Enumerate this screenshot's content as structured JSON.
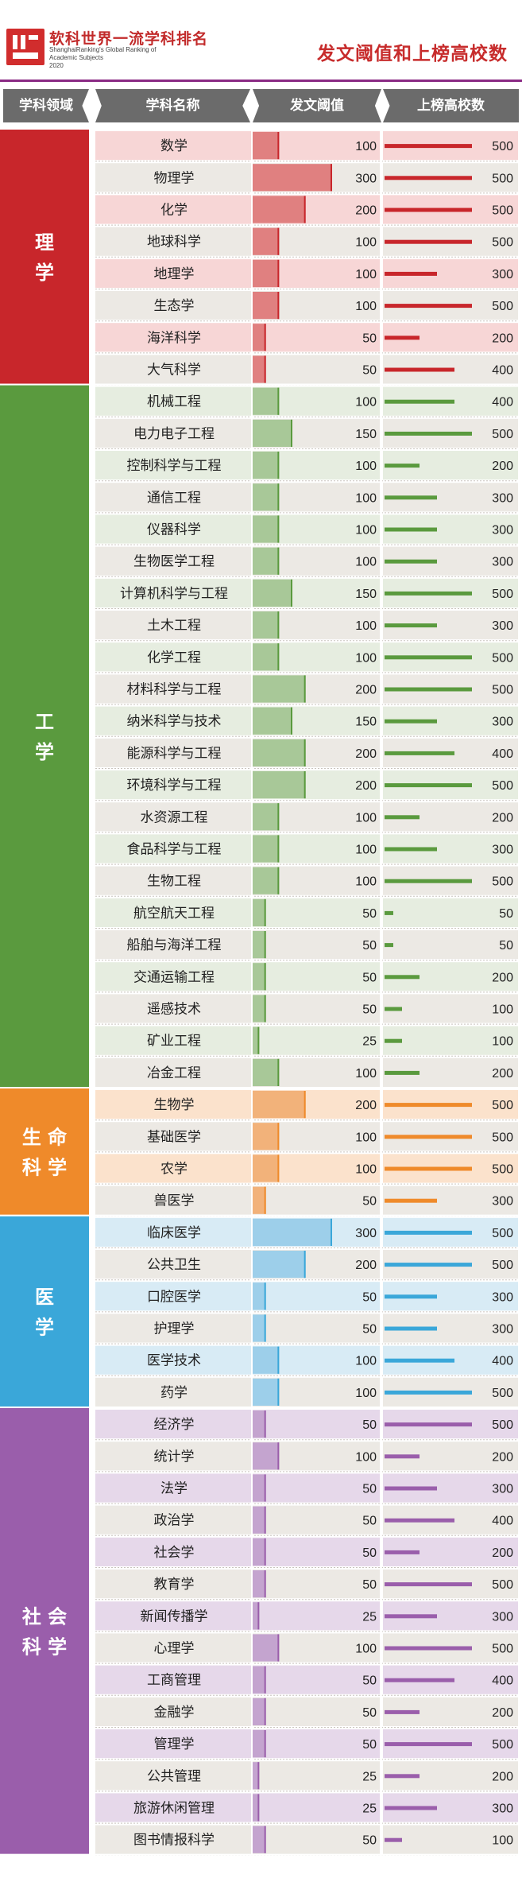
{
  "header": {
    "logo_cn": "软科世界一流学科排名",
    "logo_en1": "ShanghaiRanking's Global Ranking of",
    "logo_en2": "Academic Subjects",
    "logo_year": "2020",
    "title": "发文阈值和上榜高校数"
  },
  "columns": {
    "field": "学科领域",
    "subject": "学科名称",
    "threshold": "发文阈值",
    "schools": "上榜高校数"
  },
  "colors": {
    "理学": {
      "strong": "#c8262b",
      "bar": "#e08080",
      "line": "#c8262b",
      "row1": "#f7d6d6",
      "row2": "#ece9e4"
    },
    "工学": {
      "strong": "#5a9a3e",
      "bar": "#a8c898",
      "line": "#5a9a3e",
      "row1": "#e6ede0",
      "row2": "#ece9e4"
    },
    "生命科学": {
      "strong": "#ef8a2a",
      "bar": "#f2b27a",
      "line": "#ef8a2a",
      "row1": "#fbe2cc",
      "row2": "#ece9e4"
    },
    "医学": {
      "strong": "#3aa7d9",
      "bar": "#9dcfea",
      "line": "#3aa7d9",
      "row1": "#d8ebf5",
      "row2": "#ece9e4"
    },
    "社会科学": {
      "strong": "#9a5eab",
      "bar": "#c4a4cf",
      "line": "#9a5eab",
      "row1": "#e6d8ea",
      "row2": "#ece9e4"
    }
  },
  "chart_data": {
    "type": "table",
    "columns": [
      "学科领域",
      "学科名称",
      "发文阈值",
      "上榜高校数"
    ],
    "groups": [
      {
        "field": "理学",
        "subjects": [
          {
            "name": "数学",
            "threshold": 100,
            "schools": 500
          },
          {
            "name": "物理学",
            "threshold": 300,
            "schools": 500
          },
          {
            "name": "化学",
            "threshold": 200,
            "schools": 500
          },
          {
            "name": "地球科学",
            "threshold": 100,
            "schools": 500
          },
          {
            "name": "地理学",
            "threshold": 100,
            "schools": 300
          },
          {
            "name": "生态学",
            "threshold": 100,
            "schools": 500
          },
          {
            "name": "海洋科学",
            "threshold": 50,
            "schools": 200
          },
          {
            "name": "大气科学",
            "threshold": 50,
            "schools": 400
          }
        ]
      },
      {
        "field": "工学",
        "subjects": [
          {
            "name": "机械工程",
            "threshold": 100,
            "schools": 400
          },
          {
            "name": "电力电子工程",
            "threshold": 150,
            "schools": 500
          },
          {
            "name": "控制科学与工程",
            "threshold": 100,
            "schools": 200
          },
          {
            "name": "通信工程",
            "threshold": 100,
            "schools": 300
          },
          {
            "name": "仪器科学",
            "threshold": 100,
            "schools": 300
          },
          {
            "name": "生物医学工程",
            "threshold": 100,
            "schools": 300
          },
          {
            "name": "计算机科学与工程",
            "threshold": 150,
            "schools": 500
          },
          {
            "name": "土木工程",
            "threshold": 100,
            "schools": 300
          },
          {
            "name": "化学工程",
            "threshold": 100,
            "schools": 500
          },
          {
            "name": "材料科学与工程",
            "threshold": 200,
            "schools": 500
          },
          {
            "name": "纳米科学与技术",
            "threshold": 150,
            "schools": 300
          },
          {
            "name": "能源科学与工程",
            "threshold": 200,
            "schools": 400
          },
          {
            "name": "环境科学与工程",
            "threshold": 200,
            "schools": 500
          },
          {
            "name": "水资源工程",
            "threshold": 100,
            "schools": 200
          },
          {
            "name": "食品科学与工程",
            "threshold": 100,
            "schools": 300
          },
          {
            "name": "生物工程",
            "threshold": 100,
            "schools": 500
          },
          {
            "name": "航空航天工程",
            "threshold": 50,
            "schools": 50
          },
          {
            "name": "船舶与海洋工程",
            "threshold": 50,
            "schools": 50
          },
          {
            "name": "交通运输工程",
            "threshold": 50,
            "schools": 200
          },
          {
            "name": "遥感技术",
            "threshold": 50,
            "schools": 100
          },
          {
            "name": "矿业工程",
            "threshold": 25,
            "schools": 100
          },
          {
            "name": "冶金工程",
            "threshold": 100,
            "schools": 200
          }
        ]
      },
      {
        "field": "生命科学",
        "subjects": [
          {
            "name": "生物学",
            "threshold": 200,
            "schools": 500
          },
          {
            "name": "基础医学",
            "threshold": 100,
            "schools": 500
          },
          {
            "name": "农学",
            "threshold": 100,
            "schools": 500
          },
          {
            "name": "兽医学",
            "threshold": 50,
            "schools": 300
          }
        ]
      },
      {
        "field": "医学",
        "subjects": [
          {
            "name": "临床医学",
            "threshold": 300,
            "schools": 500
          },
          {
            "name": "公共卫生",
            "threshold": 200,
            "schools": 500
          },
          {
            "name": "口腔医学",
            "threshold": 50,
            "schools": 300
          },
          {
            "name": "护理学",
            "threshold": 50,
            "schools": 300
          },
          {
            "name": "医学技术",
            "threshold": 100,
            "schools": 400
          },
          {
            "name": "药学",
            "threshold": 100,
            "schools": 500
          }
        ]
      },
      {
        "field": "社会科学",
        "subjects": [
          {
            "name": "经济学",
            "threshold": 50,
            "schools": 500
          },
          {
            "name": "统计学",
            "threshold": 100,
            "schools": 200
          },
          {
            "name": "法学",
            "threshold": 50,
            "schools": 300
          },
          {
            "name": "政治学",
            "threshold": 50,
            "schools": 400
          },
          {
            "name": "社会学",
            "threshold": 50,
            "schools": 200
          },
          {
            "name": "教育学",
            "threshold": 50,
            "schools": 500
          },
          {
            "name": "新闻传播学",
            "threshold": 25,
            "schools": 300
          },
          {
            "name": "心理学",
            "threshold": 100,
            "schools": 500
          },
          {
            "name": "工商管理",
            "threshold": 50,
            "schools": 400
          },
          {
            "name": "金融学",
            "threshold": 50,
            "schools": 200
          },
          {
            "name": "管理学",
            "threshold": 50,
            "schools": 500
          },
          {
            "name": "公共管理",
            "threshold": 25,
            "schools": 200
          },
          {
            "name": "旅游休闲管理",
            "threshold": 25,
            "schools": 300
          },
          {
            "name": "图书情报科学",
            "threshold": 50,
            "schools": 100
          }
        ]
      }
    ]
  }
}
